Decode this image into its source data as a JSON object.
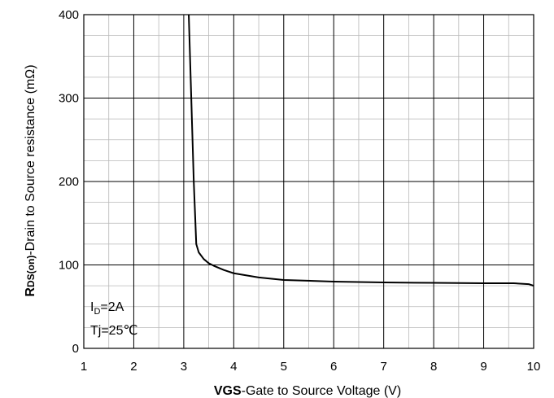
{
  "chart_data": {
    "type": "line",
    "xlabel_bold": "VGS",
    "xlabel_rest": "-Gate to Source Voltage (V)",
    "ylabel_bold": "R",
    "ylabel_sub": "DS(on)",
    "ylabel_rest": "-Drain to Source resistance (mΩ)",
    "xlim": [
      1,
      10
    ],
    "ylim": [
      0,
      400
    ],
    "x_ticks": [
      1,
      2,
      3,
      4,
      5,
      6,
      7,
      8,
      9,
      10
    ],
    "y_ticks": [
      0,
      100,
      200,
      300,
      400
    ],
    "x_tick_labels": [
      "1",
      "2",
      "3",
      "4",
      "5",
      "6",
      "7",
      "8",
      "9",
      "10"
    ],
    "y_tick_labels": [
      "0",
      "100",
      "200",
      "300",
      "400"
    ],
    "x_minor_step": 0.5,
    "y_minor_step": 25,
    "grid": true,
    "annotations": {
      "line1_main": "I",
      "line1_sub": "D",
      "line1_rest": "=2A",
      "line2": "Tj=25℃"
    },
    "series": [
      {
        "color": "#000000",
        "x": [
          3.1,
          3.15,
          3.2,
          3.25,
          3.3,
          3.4,
          3.5,
          3.6,
          3.8,
          4.0,
          4.5,
          5.0,
          6.0,
          7.0,
          8.0,
          9.0,
          9.6,
          9.9,
          10.0
        ],
        "y": [
          400,
          300,
          200,
          125,
          115,
          107,
          102,
          99,
          94,
          90,
          85,
          82,
          80,
          79,
          78.5,
          78,
          78,
          77,
          75
        ]
      }
    ]
  }
}
